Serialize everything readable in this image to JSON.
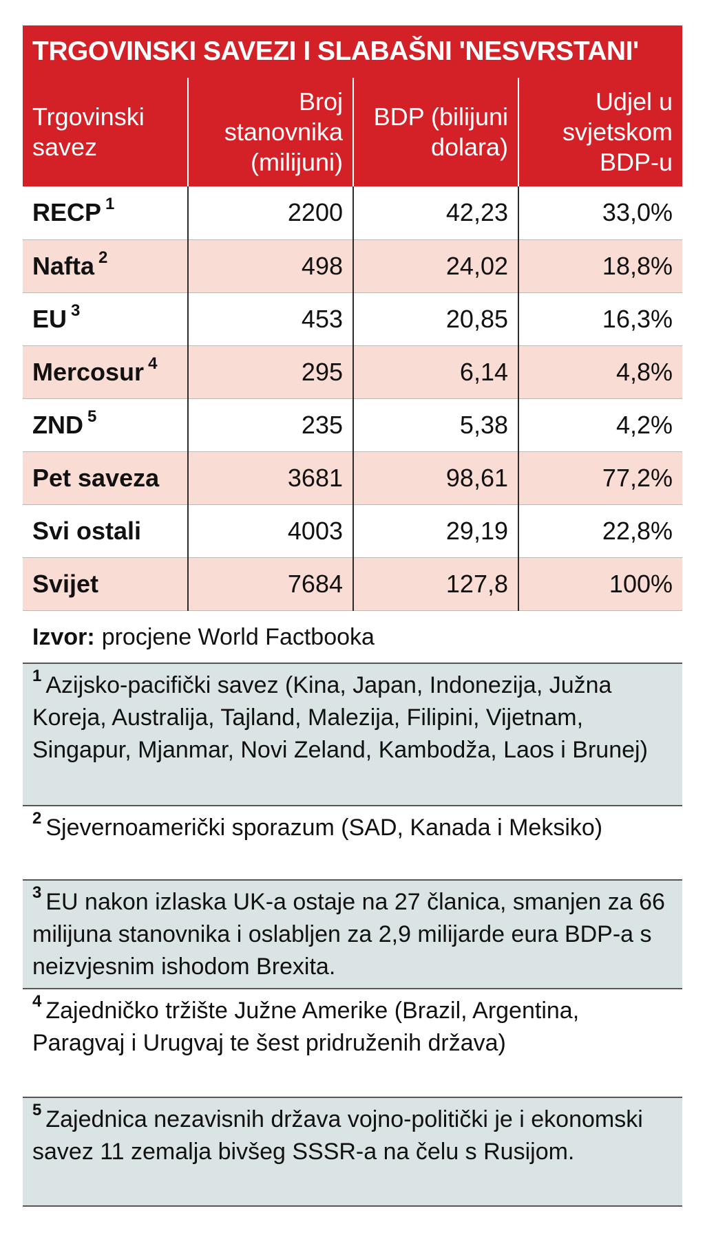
{
  "title": "TRGOVINSKI SAVEZI I SLABAŠNI 'NESVRSTANI'",
  "headers": {
    "col1": "Trgovinski savez",
    "col2": "Broj stanovnika (milijuni)",
    "col3": "BDP (bilijuni dolara)",
    "col4": "Udjel u svjetskom BDP-u"
  },
  "rows": [
    {
      "name": "RECP",
      "note": "1",
      "population": "2200",
      "gdp": "42,23",
      "share": "33,0%"
    },
    {
      "name": "Nafta",
      "note": "2",
      "population": "498",
      "gdp": "24,02",
      "share": "18,8%"
    },
    {
      "name": "EU",
      "note": "3",
      "population": "453",
      "gdp": "20,85",
      "share": "16,3%"
    },
    {
      "name": "Mercosur",
      "note": "4",
      "population": "295",
      "gdp": "6,14",
      "share": "4,8%"
    },
    {
      "name": "ZND",
      "note": "5",
      "population": "235",
      "gdp": "5,38",
      "share": "4,2%"
    },
    {
      "name": "Pet saveza",
      "note": "",
      "population": "3681",
      "gdp": "98,61",
      "share": "77,2%"
    },
    {
      "name": "Svi ostali",
      "note": "",
      "population": "4003",
      "gdp": "29,19",
      "share": "22,8%"
    },
    {
      "name": "Svijet",
      "note": "",
      "population": "7684",
      "gdp": "127,8",
      "share": "100%"
    }
  ],
  "source": {
    "label": "Izvor:",
    "text": "procjene World Factbooka"
  },
  "footnotes": [
    {
      "num": "1",
      "text": "Azijsko-pacifički savez (Kina, Japan, Indonezija, Južna Koreja, Australija, Tajland, Malezija, Filipini, Vijetnam, Singapur, Mjanmar, Novi Zeland, Kambodža, Laos i Brunej)"
    },
    {
      "num": "2",
      "text": "Sjevernoamerički sporazum (SAD, Kanada i Meksiko)"
    },
    {
      "num": "3",
      "text": "EU nakon izlaska UK-a ostaje na 27 članica, smanjen za 66 milijuna stanovnika i oslabljen za 2,9 milijarde eura BDP-a s neizvjesnim ishodom Brexita."
    },
    {
      "num": "4",
      "text": "Zajedničko tržište Južne Amerike (Brazil, Argentina, Paragvaj i Urugvaj te šest pridruženih država)"
    },
    {
      "num": "5",
      "text": "Zajednica nezavisnih država vojno-politički je i ekonomski savez 11 zemalja bivšeg SSSR-a na čelu s Rusijom."
    }
  ],
  "colors": {
    "header_red": "#d42027",
    "row_shade": "#f9dcd3",
    "note_shade": "#dae4e5"
  }
}
